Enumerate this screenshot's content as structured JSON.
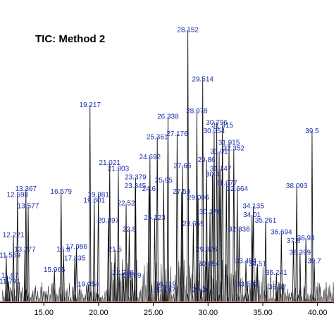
{
  "chart_data": {
    "type": "line",
    "title": "TIC: Method 2",
    "xlabel": "",
    "ylabel": "",
    "xlim": [
      11.0,
      41.5
    ],
    "ylim": [
      0,
      100
    ],
    "grid": false,
    "legend": "none",
    "line_color": "#111111",
    "baseline_color": "#e05050",
    "label_color": "#1a2fb0",
    "x_ticks": [
      {
        "value": 15,
        "label": "15.00"
      },
      {
        "value": 20,
        "label": "20.00"
      },
      {
        "value": 25,
        "label": "25.00"
      },
      {
        "value": 30,
        "label": "30.00"
      },
      {
        "value": 35,
        "label": "35.00"
      },
      {
        "value": 40,
        "label": "40.00"
      }
    ],
    "peaks": [
      {
        "rt": 28.152,
        "label": "28.152",
        "height": 94
      },
      {
        "rt": 29.514,
        "label": "29.514",
        "height": 77
      },
      {
        "rt": 28.978,
        "label": "28.978",
        "height": 66
      },
      {
        "rt": 19.217,
        "label": "19.217",
        "height": 68
      },
      {
        "rt": 26.338,
        "label": "26.338",
        "height": 64
      },
      {
        "rt": 25.361,
        "label": "25.361",
        "height": 57
      },
      {
        "rt": 27.176,
        "label": "27.176",
        "height": 58
      },
      {
        "rt": 30.796,
        "label": "30.796",
        "height": 62
      },
      {
        "rt": 31.315,
        "label": "31.315",
        "height": 61
      },
      {
        "rt": 31.915,
        "label": "31.915",
        "height": 55
      },
      {
        "rt": 32.352,
        "label": "32.352",
        "height": 53
      },
      {
        "rt": 30.554,
        "label": "30.554",
        "height": 59
      },
      {
        "rt": 31.01,
        "label": "31.01",
        "height": 52
      },
      {
        "rt": 24.692,
        "label": "24.692",
        "height": 50
      },
      {
        "rt": 21.021,
        "label": "21.021",
        "height": 48
      },
      {
        "rt": 21.803,
        "label": "21.803",
        "height": 46
      },
      {
        "rt": 29.86,
        "label": "29.86",
        "height": 49
      },
      {
        "rt": 27.66,
        "label": "27.66",
        "height": 47
      },
      {
        "rt": 31.147,
        "label": "31.147",
        "height": 46
      },
      {
        "rt": 30.4,
        "label": "30.4",
        "height": 44
      },
      {
        "rt": 23.379,
        "label": "23.379",
        "height": 43
      },
      {
        "rt": 39.5,
        "label": "39.5",
        "height": 59
      },
      {
        "rt": 38.093,
        "label": "38.093",
        "height": 40
      },
      {
        "rt": 19.981,
        "label": "19.981",
        "height": 37
      },
      {
        "rt": 19.601,
        "label": "19.601",
        "height": 35
      },
      {
        "rt": 16.579,
        "label": "16.579",
        "height": 38
      },
      {
        "rt": 13.367,
        "label": "13.367",
        "height": 39
      },
      {
        "rt": 12.598,
        "label": "12.598",
        "height": 37
      },
      {
        "rt": 13.577,
        "label": "13.577",
        "height": 33
      },
      {
        "rt": 32.664,
        "label": "32.664",
        "height": 39
      },
      {
        "rt": 31.677,
        "label": "31.677",
        "height": 41
      },
      {
        "rt": 23.345,
        "label": "23.345",
        "height": 40
      },
      {
        "rt": 24.6,
        "label": "24.6",
        "height": 39
      },
      {
        "rt": 25.95,
        "label": "25.95",
        "height": 42
      },
      {
        "rt": 27.59,
        "label": "27.59",
        "height": 38
      },
      {
        "rt": 30.176,
        "label": "30.176",
        "height": 31
      },
      {
        "rt": 29.086,
        "label": "29.086",
        "height": 36
      },
      {
        "rt": 25.123,
        "label": "25.123",
        "height": 29
      },
      {
        "rt": 22.52,
        "label": "22.52",
        "height": 34
      },
      {
        "rt": 34.135,
        "label": "34.135",
        "height": 33
      },
      {
        "rt": 34.01,
        "label": "34.01",
        "height": 30
      },
      {
        "rt": 35.261,
        "label": "35.261",
        "height": 28
      },
      {
        "rt": 28.659,
        "label": "28.659",
        "height": 27
      },
      {
        "rt": 32.836,
        "label": "32.836",
        "height": 25
      },
      {
        "rt": 36.694,
        "label": "36.694",
        "height": 24
      },
      {
        "rt": 38.93,
        "label": "38.93",
        "height": 22
      },
      {
        "rt": 37.8,
        "label": "37.8",
        "height": 21
      },
      {
        "rt": 20.897,
        "label": "20.897",
        "height": 28
      },
      {
        "rt": 22.8,
        "label": "22.8",
        "height": 25
      },
      {
        "rt": 12.221,
        "label": "12.221",
        "height": 23
      },
      {
        "rt": 17.986,
        "label": "17.986",
        "height": 19
      },
      {
        "rt": 16.8,
        "label": "16.8",
        "height": 18
      },
      {
        "rt": 13.277,
        "label": "13.277",
        "height": 18
      },
      {
        "rt": 11.569,
        "label": "11.569",
        "height": 16
      },
      {
        "rt": 17.835,
        "label": "17.835",
        "height": 15
      },
      {
        "rt": 29.876,
        "label": "29.876",
        "height": 18
      },
      {
        "rt": 21.5,
        "label": "21.5",
        "height": 18
      },
      {
        "rt": 38.399,
        "label": "38.399",
        "height": 17
      },
      {
        "rt": 15.965,
        "label": "15.965",
        "height": 11
      },
      {
        "rt": 30.054,
        "label": "30.054",
        "height": 13
      },
      {
        "rt": 33.454,
        "label": "33.454",
        "height": 14
      },
      {
        "rt": 34.51,
        "label": "34.51",
        "height": 13
      },
      {
        "rt": 36.241,
        "label": "36.241",
        "height": 10
      },
      {
        "rt": 22.246,
        "label": "22.246",
        "height": 10
      },
      {
        "rt": 23.09,
        "label": "23.09",
        "height": 9
      },
      {
        "rt": 11.67,
        "label": "11.67",
        "height": 9
      },
      {
        "rt": 11.791,
        "label": "11.791",
        "height": 7
      },
      {
        "rt": 19.054,
        "label": "19.054",
        "height": 6
      },
      {
        "rt": 26.119,
        "label": "26.119",
        "height": 6
      },
      {
        "rt": 26.047,
        "label": "26.047",
        "height": 4
      },
      {
        "rt": 29.36,
        "label": "29.36",
        "height": 4
      },
      {
        "rt": 33.593,
        "label": "33.593",
        "height": 6
      },
      {
        "rt": 36.32,
        "label": "36.32",
        "height": 5
      },
      {
        "rt": 39.7,
        "label": "39.7",
        "height": 14
      }
    ]
  }
}
